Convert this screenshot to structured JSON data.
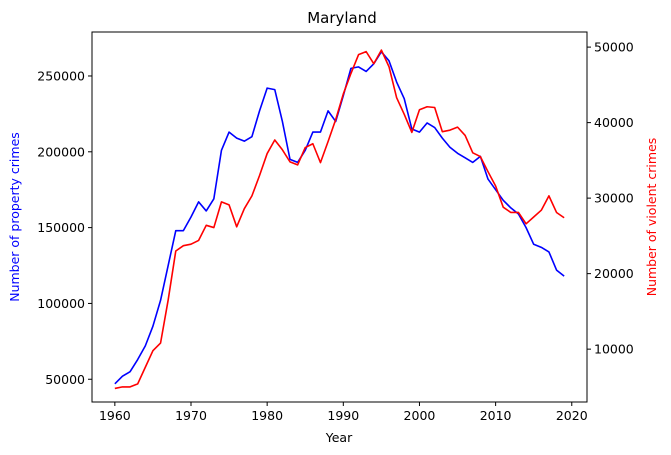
{
  "chart_data": {
    "type": "line",
    "title": "Maryland",
    "xlabel": "Year",
    "ylabel_left": "Number of property crimes",
    "ylabel_right": "Number of violent crimes",
    "xlim": [
      1957,
      2022
    ],
    "ylim_left": [
      35000,
      279000
    ],
    "ylim_right": [
      3000,
      52000
    ],
    "xticks": [
      1960,
      1970,
      1980,
      1990,
      2000,
      2010,
      2020
    ],
    "yticks_left": [
      50000,
      100000,
      150000,
      200000,
      250000
    ],
    "yticks_right": [
      10000,
      20000,
      30000,
      40000,
      50000
    ],
    "colors": {
      "property": "#0000ff",
      "violent": "#ff0000",
      "right_label": "#ff0000",
      "left_label": "#0000ff"
    },
    "x": [
      1960,
      1961,
      1962,
      1963,
      1964,
      1965,
      1966,
      1967,
      1968,
      1969,
      1970,
      1971,
      1972,
      1973,
      1974,
      1975,
      1976,
      1977,
      1978,
      1979,
      1980,
      1981,
      1982,
      1983,
      1984,
      1985,
      1986,
      1987,
      1988,
      1989,
      1990,
      1991,
      1992,
      1993,
      1994,
      1995,
      1996,
      1997,
      1998,
      1999,
      2000,
      2001,
      2002,
      2003,
      2004,
      2005,
      2006,
      2007,
      2008,
      2009,
      2010,
      2011,
      2012,
      2013,
      2014,
      2015,
      2016,
      2017,
      2018,
      2019
    ],
    "series": [
      {
        "name": "Number of property crimes",
        "axis": "left",
        "values": [
          47000,
          52000,
          55000,
          63000,
          72000,
          85000,
          102000,
          125000,
          148000,
          148000,
          157000,
          167000,
          161000,
          169000,
          201000,
          213000,
          209000,
          207000,
          210000,
          227000,
          242000,
          241000,
          220000,
          195000,
          193000,
          201000,
          213000,
          213000,
          227000,
          220000,
          237000,
          255000,
          256000,
          253000,
          258000,
          266000,
          260000,
          246000,
          235000,
          215000,
          213000,
          219000,
          216000,
          209000,
          203000,
          199000,
          196000,
          193000,
          197000,
          182000,
          175000,
          168000,
          163000,
          159000,
          150000,
          139000,
          137000,
          134000,
          122000,
          118000
        ]
      },
      {
        "name": "Number of violent crimes",
        "axis": "right",
        "values": [
          4800,
          5000,
          5000,
          5400,
          7600,
          9800,
          10800,
          16500,
          23000,
          23700,
          23900,
          24400,
          26400,
          26100,
          29500,
          29100,
          26200,
          28600,
          30300,
          33000,
          35900,
          37700,
          36400,
          34800,
          34400,
          36700,
          37200,
          34700,
          37500,
          40400,
          43800,
          46500,
          49000,
          49400,
          47800,
          49600,
          47400,
          43300,
          41100,
          38700,
          41700,
          42100,
          42000,
          38800,
          39000,
          39400,
          38300,
          36000,
          35500,
          33500,
          31600,
          28800,
          28100,
          28100,
          26600,
          27500,
          28400,
          30300,
          28100,
          27400
        ]
      }
    ]
  }
}
